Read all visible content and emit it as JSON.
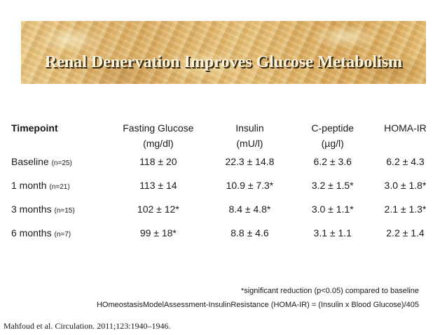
{
  "slide": {
    "title": "Renal Denervation Improves Glucose Metabolism",
    "citation": "Mahfoud et al. Circulation. 2011;123:1940–1946."
  },
  "table": {
    "headers": [
      {
        "line1": "Timepoint",
        "line2": ""
      },
      {
        "line1": "Fasting Glucose",
        "line2": "(mg/dl)"
      },
      {
        "line1": "Insulin",
        "line2": "(mU/l)"
      },
      {
        "line1": "C-peptide",
        "line2": "(µg/l)"
      },
      {
        "line1": "HOMA-IR",
        "line2": ""
      }
    ],
    "rows": [
      {
        "label": "Baseline",
        "n": "(n=25)",
        "glucose": "118 ± 20",
        "insulin": "22.3 ± 14.8",
        "cpeptide": "6.2 ± 3.6",
        "homa": "6.2 ± 4.3"
      },
      {
        "label": "1 month",
        "n": "(n=21)",
        "glucose": "113 ± 14",
        "insulin": "10.9 ± 7.3*",
        "cpeptide": "3.2 ± 1.5*",
        "homa": "3.0 ± 1.8*"
      },
      {
        "label": "3 months",
        "n": "(n=15)",
        "glucose": "102 ± 12*",
        "insulin": "8.4 ± 4.8*",
        "cpeptide": "3.0 ± 1.1*",
        "homa": "2.1 ± 1.3*"
      },
      {
        "label": "6 months",
        "n": "(n=7)",
        "glucose": "99 ± 18*",
        "insulin": "8.8 ± 4.6",
        "cpeptide": "3.1 ± 1.1",
        "homa": "2.2 ± 1.4"
      }
    ]
  },
  "footnotes": {
    "significance": "*significant reduction (p<0.05) compared to baseline",
    "homa_definition": "HOmeostasisModelAssessment-InsulinResistance (HOMA-IR) = (Insulin x Blood Glucose)/405"
  }
}
